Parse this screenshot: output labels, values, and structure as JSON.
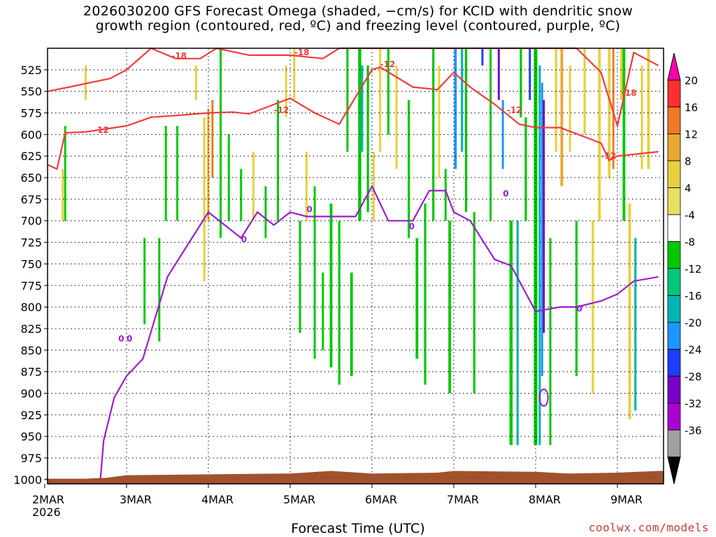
{
  "title": {
    "line1": "2026030200 GFS Forecast Omega (shaded, −cm/s) for KCID with dendritic snow",
    "line2": "growth region (contoured, red, ºC) and freezing level (contoured, purple, ºC)"
  },
  "credit": "coolwx.com/models",
  "chart_data": {
    "type": "heatmap",
    "title": "2026030200 GFS Forecast Omega (shaded, −cm/s) for KCID with dendritic snow growth region (contoured, red, ºC) and freezing level (contoured, purple, ºC)",
    "xlabel": "Forecast Time (UTC)",
    "ylabel": "",
    "x_ticks": [
      "2MAR",
      "3MAR",
      "4MAR",
      "5MAR",
      "6MAR",
      "7MAR",
      "8MAR",
      "9MAR"
    ],
    "x_subtick": "2026",
    "xlim_days": [
      0,
      7.5
    ],
    "y_ticks": [
      525,
      550,
      575,
      600,
      625,
      650,
      675,
      700,
      725,
      750,
      775,
      800,
      825,
      850,
      875,
      900,
      925,
      950,
      975,
      1000
    ],
    "ylim": [
      500,
      1005
    ],
    "y_inverted": true,
    "grid": true,
    "colorbar": {
      "labels": [
        "20",
        "16",
        "12",
        "8",
        "4",
        "-4",
        "-8",
        "-12",
        "-16",
        "-20",
        "-24",
        "-28",
        "-32",
        "-36"
      ],
      "colors": [
        "#ff00aa",
        "#ff3030",
        "#f07828",
        "#e8a832",
        "#e8d040",
        "#e8e060",
        "#ffffff",
        "#00c800",
        "#00c878",
        "#00b4b4",
        "#1e96ff",
        "#1e3cff",
        "#7800c8",
        "#aa00d2",
        "#a0a0a0",
        "#000000"
      ]
    },
    "contour_labels": {
      "red": [
        "-18",
        "-18",
        "-12",
        "-12",
        "-12",
        "-12",
        "-18",
        "-12"
      ],
      "purple": [
        "0",
        "0",
        "0",
        "0",
        "0",
        "0",
        "0"
      ]
    },
    "series": [
      {
        "name": "-12",
        "color": "#f03c3c",
        "x": [
          0,
          0.15,
          0.25,
          0.5,
          1.0,
          1.3,
          1.6,
          2.0,
          2.3,
          2.5,
          3.0,
          3.3,
          3.6,
          4.0,
          4.1,
          4.5,
          4.8,
          5.0,
          5.2,
          5.5,
          5.8,
          6.0,
          6.3,
          6.8,
          6.9,
          7.0,
          7.5
        ],
        "y": [
          635,
          640,
          598,
          597,
          590,
          580,
          578,
          575,
          574,
          576,
          558,
          575,
          588,
          525,
          522,
          545,
          548,
          528,
          545,
          565,
          588,
          592,
          592,
          610,
          630,
          625,
          620
        ]
      },
      {
        "name": "-18",
        "color": "#f03c3c",
        "x": [
          0,
          0.3,
          0.8,
          1.0,
          1.3,
          1.6,
          1.9,
          2.1,
          2.5,
          3.0,
          3.4,
          3.6,
          4.0,
          5.0,
          5.5,
          6.0,
          6.5,
          6.8,
          7.0,
          7.2,
          7.5
        ],
        "y": [
          550,
          545,
          535,
          525,
          500,
          512,
          512,
          500,
          508,
          508,
          512,
          500,
          500,
          500,
          500,
          500,
          500,
          528,
          590,
          505,
          520
        ]
      },
      {
        "name": "0",
        "color": "#9b1ecc",
        "x": [
          0.68,
          0.72,
          0.85,
          1.0,
          1.2,
          1.5,
          1.8,
          2.0,
          2.2,
          2.4,
          2.6,
          2.8,
          3.0,
          3.2,
          3.5,
          3.8,
          4.0,
          4.2,
          4.5,
          4.7,
          4.9,
          5.0,
          5.2,
          5.5,
          5.7,
          6.0,
          6.3,
          6.5,
          6.8,
          7.0,
          7.2,
          7.5
        ],
        "y": [
          1000,
          955,
          905,
          880,
          860,
          765,
          720,
          690,
          705,
          720,
          690,
          705,
          690,
          695,
          695,
          695,
          660,
          700,
          700,
          665,
          665,
          690,
          700,
          745,
          752,
          805,
          800,
          800,
          793,
          785,
          770,
          765
        ]
      }
    ]
  }
}
